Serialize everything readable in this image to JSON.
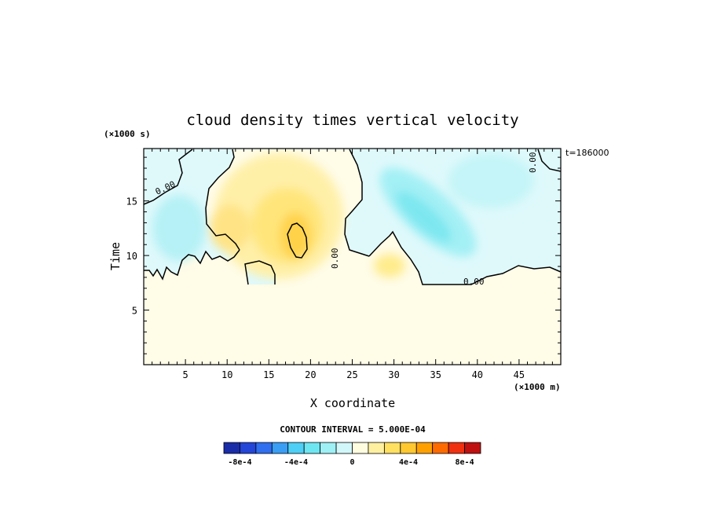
{
  "chart_data": {
    "type": "heatmap",
    "title": "cloud density times vertical velocity",
    "xlabel": "X coordinate",
    "ylabel": "Time",
    "x_unit": "(×1000 m)",
    "y_unit": "(×1000 s)",
    "time_stamp": "t=186000",
    "xlim": [
      0,
      50
    ],
    "ylim": [
      0,
      19.8
    ],
    "x_ticks": [
      5,
      10,
      15,
      20,
      25,
      30,
      35,
      40,
      45
    ],
    "y_ticks": [
      5,
      10,
      15
    ],
    "x_tick_labels": [
      "5",
      "10",
      "15",
      "20",
      "25",
      "30",
      "35",
      "40",
      "45"
    ],
    "y_tick_labels": [
      "5",
      "10",
      "15"
    ],
    "contour_interval_text": "CONTOUR INTERVAL = 5.000E-04",
    "zero_contour_label": "0.00",
    "colorbar": {
      "colors": [
        "#1a2ca8",
        "#2345d8",
        "#2f6ff0",
        "#3a9ef5",
        "#4ecff5",
        "#6ee6f2",
        "#9ef0f5",
        "#d2f7fa",
        "#fffce0",
        "#fff0a0",
        "#ffe060",
        "#ffc830",
        "#ffa000",
        "#ff6a00",
        "#f03010",
        "#c01010"
      ],
      "tick_labels": [
        "-8e-4",
        "-4e-4",
        "0",
        "4e-4",
        "8e-4"
      ],
      "tick_values": [
        -0.0008,
        -0.0004,
        0,
        0.0004,
        0.0008
      ],
      "min": -0.0008,
      "max": 0.0008
    },
    "features": [
      {
        "kind": "positive-max",
        "x": 18,
        "y": 12,
        "level": 0.0006
      },
      {
        "kind": "positive",
        "x": 11,
        "y": 14.5,
        "level": 0.0003
      },
      {
        "kind": "positive",
        "x": 29.5,
        "y": 9.3,
        "level": 0.0002
      },
      {
        "kind": "negative-min",
        "x": 34,
        "y": 13.5,
        "level": -0.0004
      },
      {
        "kind": "negative",
        "x": 4,
        "y": 13.5,
        "level": -0.0002
      }
    ],
    "grid": false
  }
}
